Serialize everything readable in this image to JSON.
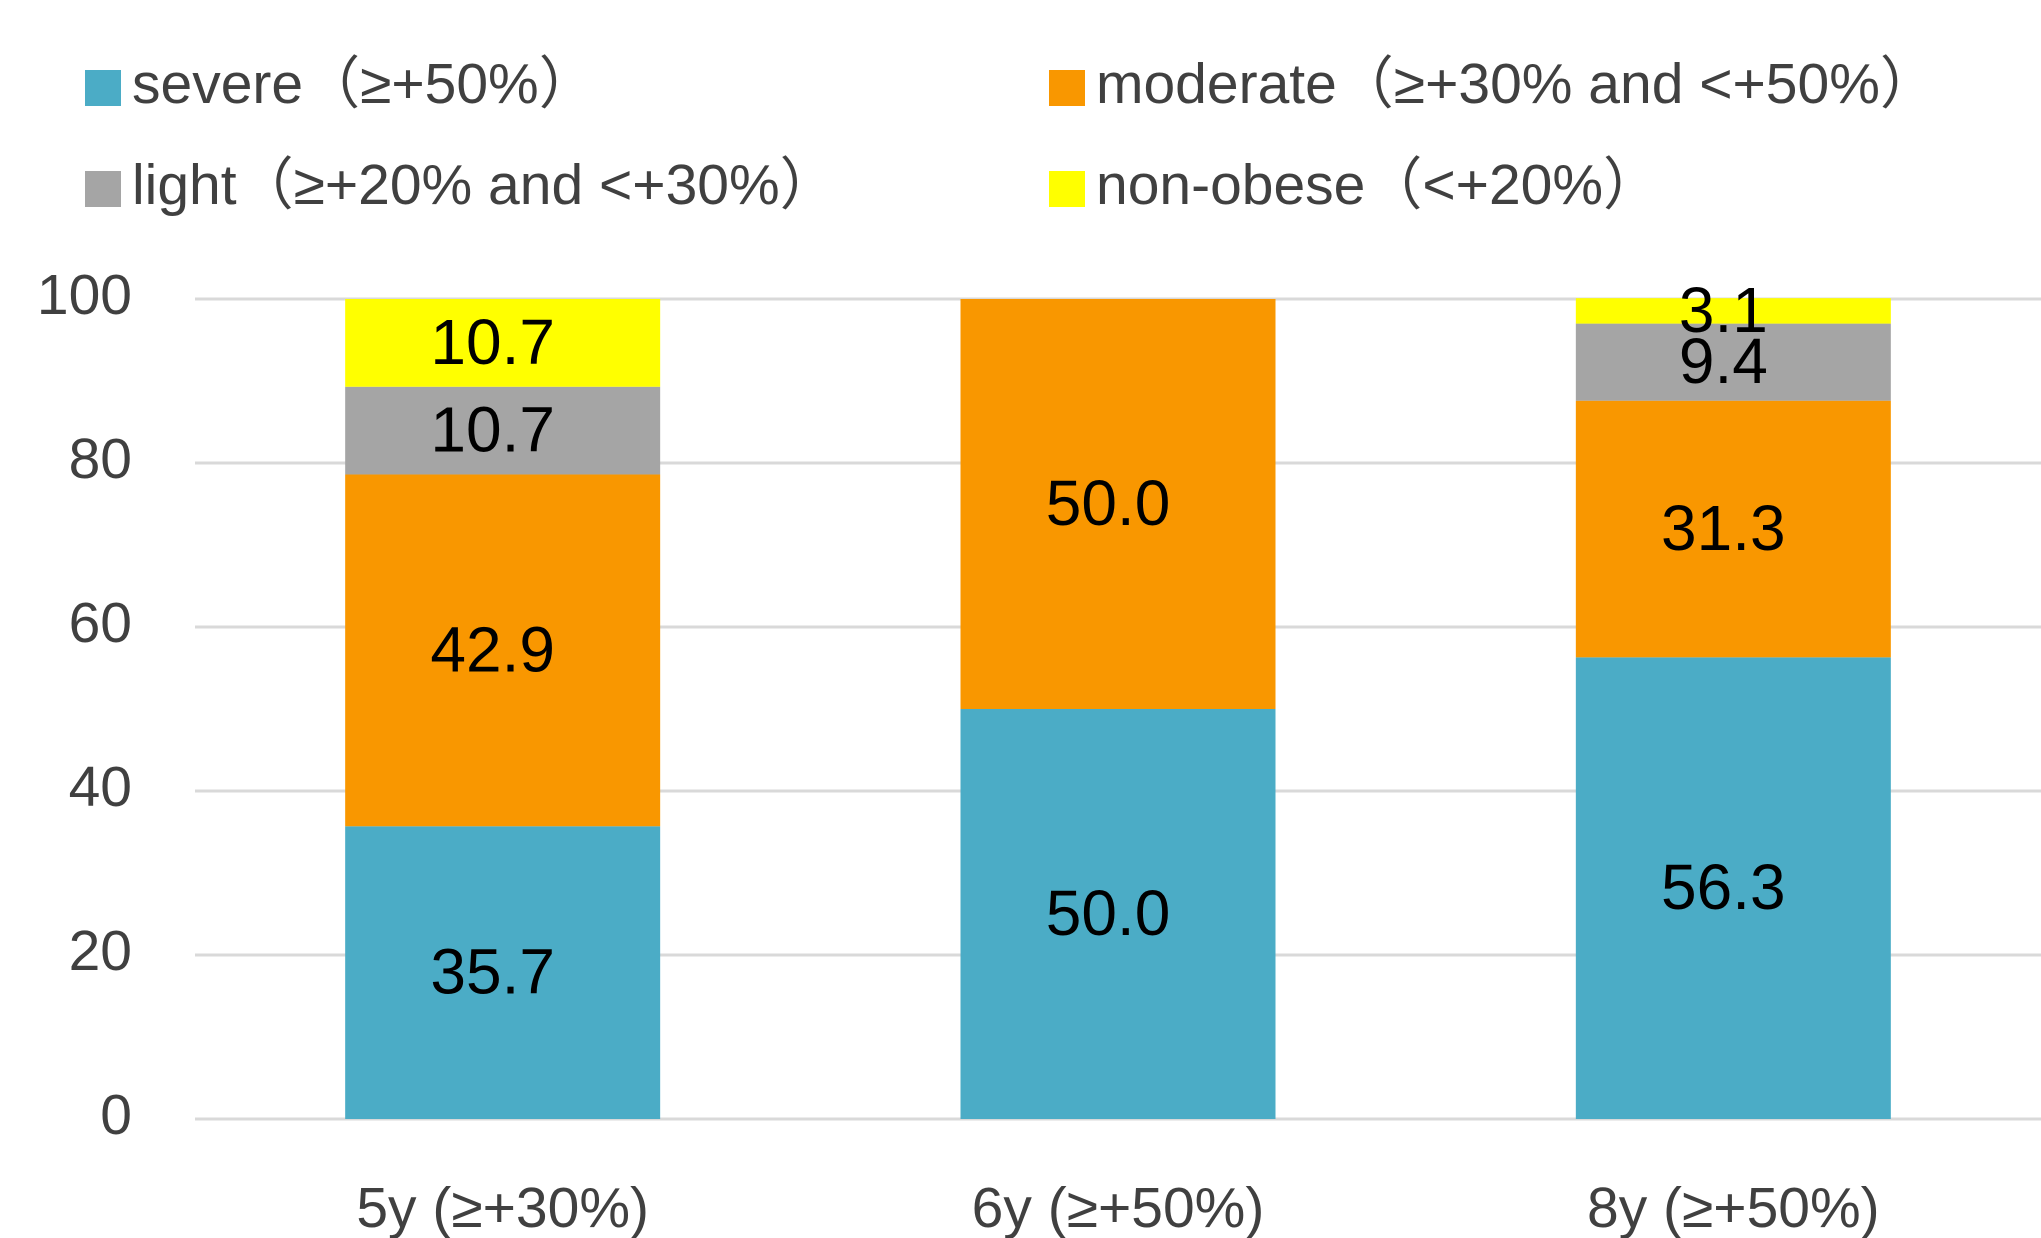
{
  "chart_data": {
    "type": "stacked_bar",
    "categories": [
      "5y (≥+30%)",
      "6y (≥+50%)",
      "8y (≥+50%)"
    ],
    "series": [
      {
        "name": "severe（≥+50%）",
        "color": "#4bacc6",
        "values": [
          35.7,
          50.0,
          56.3
        ],
        "value_labels": [
          "35.7",
          "50.0",
          "56.3"
        ]
      },
      {
        "name": "moderate（≥+30% and <+50%）",
        "color": "#f99700",
        "values": [
          42.9,
          50.0,
          31.3
        ],
        "value_labels": [
          "42.9",
          "50.0",
          "31.3"
        ]
      },
      {
        "name": "light（≥+20% and <+30%）",
        "color": "#a5a5a5",
        "values": [
          10.7,
          null,
          9.4
        ],
        "value_labels": [
          "10.7",
          null,
          "9.4"
        ]
      },
      {
        "name": "non-obese（<+20%）",
        "color": "#ffff00",
        "values": [
          10.7,
          null,
          3.1
        ],
        "value_labels": [
          "10.7",
          null,
          "3.1"
        ]
      }
    ],
    "ylim": [
      0,
      100
    ],
    "yticks": [
      0,
      20,
      40,
      60,
      80,
      100
    ],
    "grid": true,
    "legend": "top"
  }
}
